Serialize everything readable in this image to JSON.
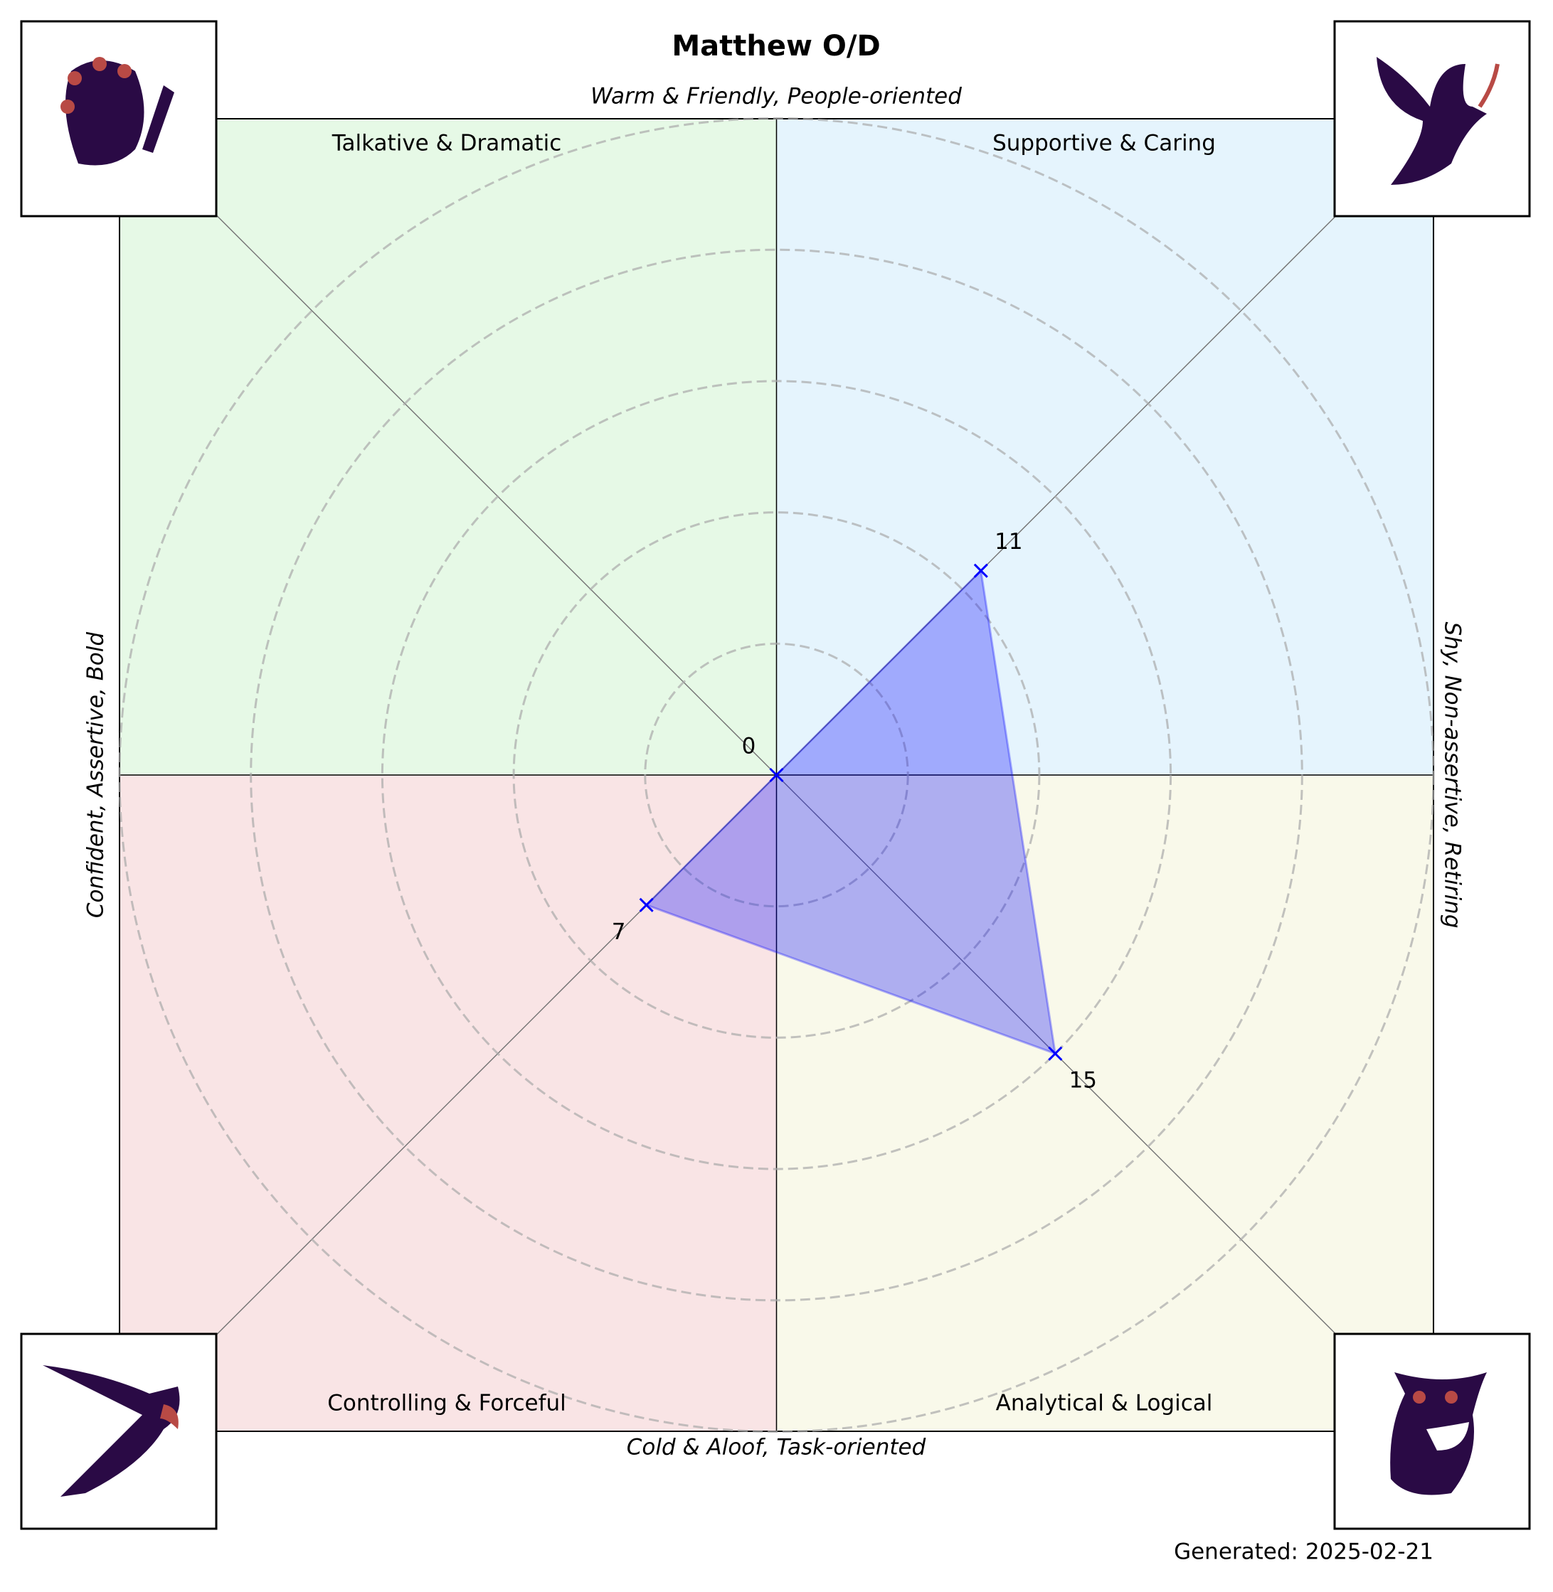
{
  "chart_data": {
    "type": "radar",
    "title": "Matthew O/D",
    "top_label": "Warm & Friendly, People-oriented",
    "bottom_label": "Cold & Aloof, Task-oriented",
    "left_label": "Confident, Assertive, Bold",
    "right_label": "Shy, Non-assertive, Retiring",
    "categories": [
      "Talkative & Dramatic",
      "Supportive & Caring",
      "Analytical & Logical",
      "Controlling & Forceful"
    ],
    "quadrant_colors": [
      "#e6f9e6",
      "#e5f4fd",
      "#f9f9ea",
      "#f9e4e5"
    ],
    "values": [
      0,
      11,
      15,
      7
    ],
    "color": "#0000ff",
    "rlim": [
      0,
      25
    ],
    "rticks": [
      5,
      10,
      15,
      20,
      25
    ],
    "grid": true,
    "footer": "Generated: 2025-02-21"
  }
}
